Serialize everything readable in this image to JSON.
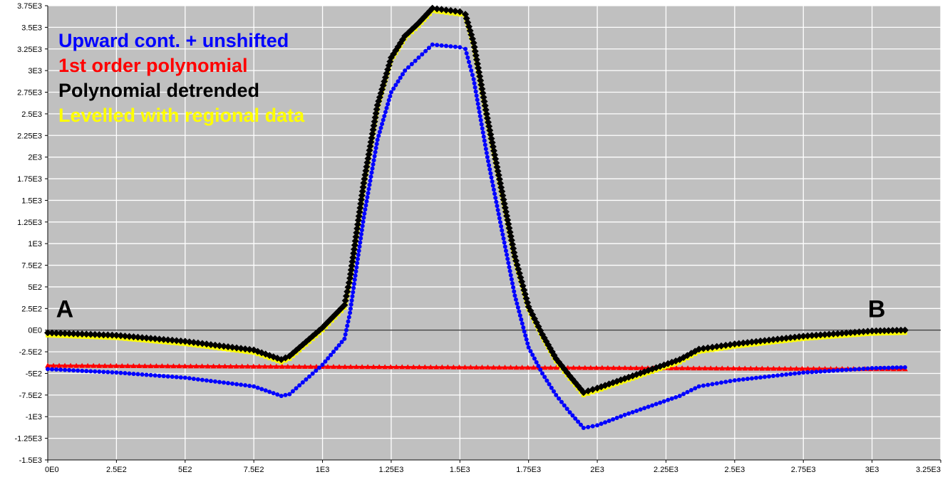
{
  "chart_data": {
    "type": "line",
    "title": "",
    "xlabel": "",
    "ylabel": "",
    "xlim": [
      0,
      3250
    ],
    "ylim": [
      -1500,
      3750
    ],
    "grid": true,
    "legend_placement": "top-left",
    "background_color": "#c0c0c0",
    "grid_color": "#ffffff",
    "x_ticks": [
      0,
      250,
      500,
      750,
      1000,
      1250,
      1500,
      1750,
      2000,
      2250,
      2500,
      2750,
      3000,
      3250
    ],
    "x_tick_labels": [
      "0E0",
      "2.5E2",
      "5E2",
      "7.5E2",
      "1E3",
      "1.25E3",
      "1.5E3",
      "1.75E3",
      "2E3",
      "2.25E3",
      "2.5E3",
      "2.75E3",
      "3E3",
      "3.25E3"
    ],
    "y_ticks": [
      3750,
      3500,
      3250,
      3000,
      2750,
      2500,
      2250,
      2000,
      1750,
      1500,
      1250,
      1000,
      750,
      500,
      250,
      0,
      -250,
      -500,
      -750,
      -1000,
      -1250,
      -1500
    ],
    "y_tick_labels": [
      "3.75E3",
      "3.5E3",
      "3.25E3",
      "3E3",
      "2.75E3",
      "2.5E3",
      "2.25E3",
      "2E3",
      "1.75E3",
      "1.5E3",
      "1.25E3",
      "1E3",
      "7.5E2",
      "5E2",
      "2.5E2",
      "0E0",
      "-2.5E2",
      "-5E2",
      "-7.5E2",
      "-1E3",
      "-1.25E3",
      "-1.5E3"
    ],
    "annotations": [
      {
        "text": "A",
        "x": 30,
        "y": 150
      },
      {
        "text": "B",
        "x": 2985,
        "y": 150
      }
    ],
    "series": [
      {
        "name": "Upward cont. + unshifted",
        "color": "#0000ff",
        "marker": "circle",
        "x": [
          0,
          250,
          500,
          750,
          850,
          880,
          1000,
          1080,
          1100,
          1150,
          1200,
          1250,
          1300,
          1350,
          1400,
          1500,
          1520,
          1550,
          1600,
          1650,
          1700,
          1750,
          1800,
          1850,
          1900,
          1950,
          2000,
          2100,
          2200,
          2300,
          2370,
          2500,
          2750,
          3000,
          3120
        ],
        "y": [
          -450,
          -490,
          -550,
          -650,
          -760,
          -740,
          -400,
          -100,
          200,
          1300,
          2200,
          2750,
          3000,
          3150,
          3300,
          3270,
          3250,
          2900,
          2000,
          1200,
          400,
          -200,
          -500,
          -750,
          -950,
          -1130,
          -1100,
          -980,
          -870,
          -760,
          -650,
          -580,
          -490,
          -440,
          -430
        ]
      },
      {
        "name": "1st order polynomial",
        "color": "#ff0000",
        "marker": "triangle",
        "x": [
          0,
          3120
        ],
        "y": [
          -410,
          -450
        ]
      },
      {
        "name": "Polynomial detrended",
        "color": "#000000",
        "marker": "diamond",
        "x": [
          0,
          250,
          500,
          750,
          850,
          880,
          1000,
          1080,
          1100,
          1150,
          1200,
          1250,
          1300,
          1350,
          1400,
          1500,
          1520,
          1550,
          1600,
          1650,
          1700,
          1750,
          1800,
          1850,
          1900,
          1950,
          2000,
          2100,
          2200,
          2300,
          2370,
          2500,
          2750,
          3000,
          3120
        ],
        "y": [
          -30,
          -60,
          -130,
          -230,
          -340,
          -300,
          30,
          290,
          600,
          1700,
          2600,
          3150,
          3400,
          3550,
          3720,
          3680,
          3650,
          3320,
          2450,
          1650,
          850,
          270,
          -50,
          -330,
          -530,
          -720,
          -670,
          -560,
          -450,
          -340,
          -220,
          -160,
          -70,
          -10,
          0
        ]
      },
      {
        "name": "Levelled with regional data",
        "color": "#ffff00",
        "marker": "square",
        "x": [
          0,
          250,
          500,
          750,
          850,
          880,
          1000,
          1080,
          1100,
          1150,
          1200,
          1250,
          1300,
          1350,
          1400,
          1500,
          1520,
          1550,
          1600,
          1650,
          1700,
          1750,
          1800,
          1850,
          1900,
          1950,
          2000,
          2100,
          2200,
          2300,
          2370,
          2500,
          2750,
          3000,
          3120
        ],
        "y": [
          -60,
          -90,
          -160,
          -260,
          -370,
          -330,
          0,
          260,
          570,
          1670,
          2570,
          3120,
          3370,
          3520,
          3690,
          3650,
          3620,
          3290,
          2420,
          1620,
          820,
          240,
          -80,
          -360,
          -560,
          -750,
          -700,
          -590,
          -480,
          -370,
          -250,
          -190,
          -100,
          -40,
          -30
        ]
      }
    ]
  }
}
